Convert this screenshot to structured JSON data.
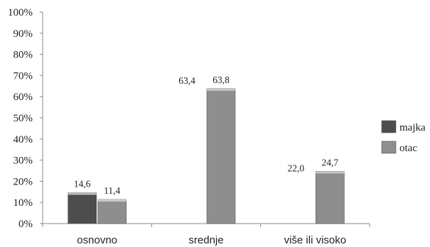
{
  "chart_data": {
    "type": "bar",
    "categories": [
      "osnovno",
      "srednje",
      "više ili visoko"
    ],
    "series": [
      {
        "name": "majka",
        "values": [
          14.6,
          63.4,
          22.0
        ],
        "labels": [
          "14,6",
          "63,4",
          "22,0"
        ],
        "color": "#4d4d4d"
      },
      {
        "name": "otac",
        "values": [
          11.4,
          63.8,
          24.7
        ],
        "labels": [
          "11,4",
          "63,8",
          "24,7"
        ],
        "color": "#8e8e8e"
      }
    ],
    "y_ticks": [
      "0%",
      "10%",
      "20%",
      "30%",
      "40%",
      "50%",
      "60%",
      "70%",
      "80%",
      "90%",
      "100%"
    ],
    "ylim": [
      0,
      100
    ],
    "grid": false,
    "legend_position": "right"
  }
}
